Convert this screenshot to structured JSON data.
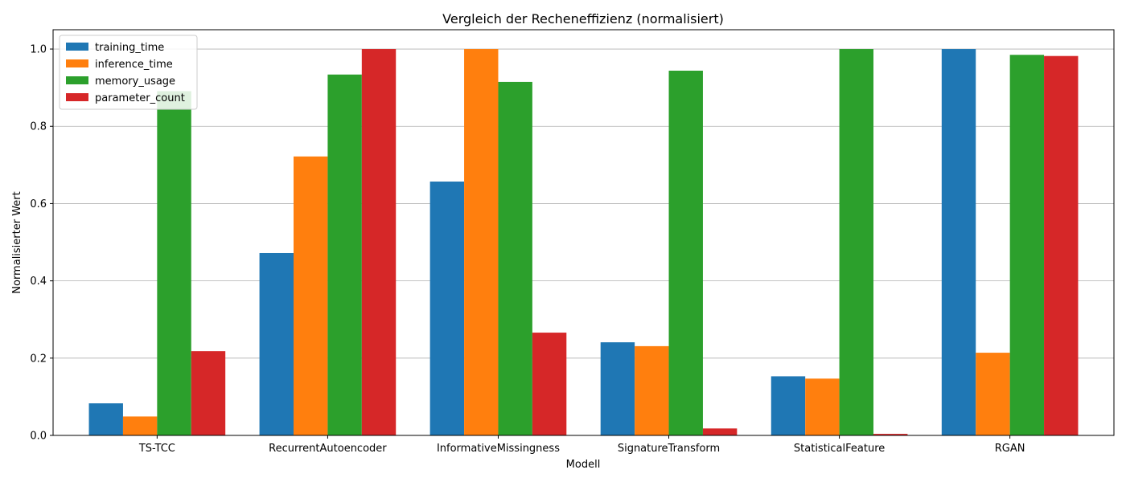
{
  "chart_data": {
    "type": "bar",
    "title": "Vergleich der Recheneffizienz (normalisiert)",
    "xlabel": "Modell",
    "ylabel": "Normalisierter Wert",
    "ylim": [
      0,
      1.05
    ],
    "yticks": [
      "0.0",
      "0.2",
      "0.4",
      "0.6",
      "0.8",
      "1.0"
    ],
    "grid": "horizontal",
    "legend_position": "top-left",
    "categories": [
      "TS-TCC",
      "RecurrentAutoencoder",
      "InformativeMissingness",
      "SignatureTransform",
      "StatisticalFeature",
      "RGAN"
    ],
    "series": [
      {
        "name": "training_time",
        "color": "#1f77b4",
        "values": [
          0.083,
          0.472,
          0.657,
          0.241,
          0.153,
          1.0
        ]
      },
      {
        "name": "inference_time",
        "color": "#ff7f0e",
        "values": [
          0.049,
          0.722,
          1.0,
          0.231,
          0.147,
          0.214
        ]
      },
      {
        "name": "memory_usage",
        "color": "#2ca02c",
        "values": [
          0.891,
          0.934,
          0.915,
          0.944,
          1.0,
          0.985
        ]
      },
      {
        "name": "parameter_count",
        "color": "#d62728",
        "values": [
          0.218,
          1.0,
          0.266,
          0.018,
          0.004,
          0.982
        ]
      }
    ]
  }
}
